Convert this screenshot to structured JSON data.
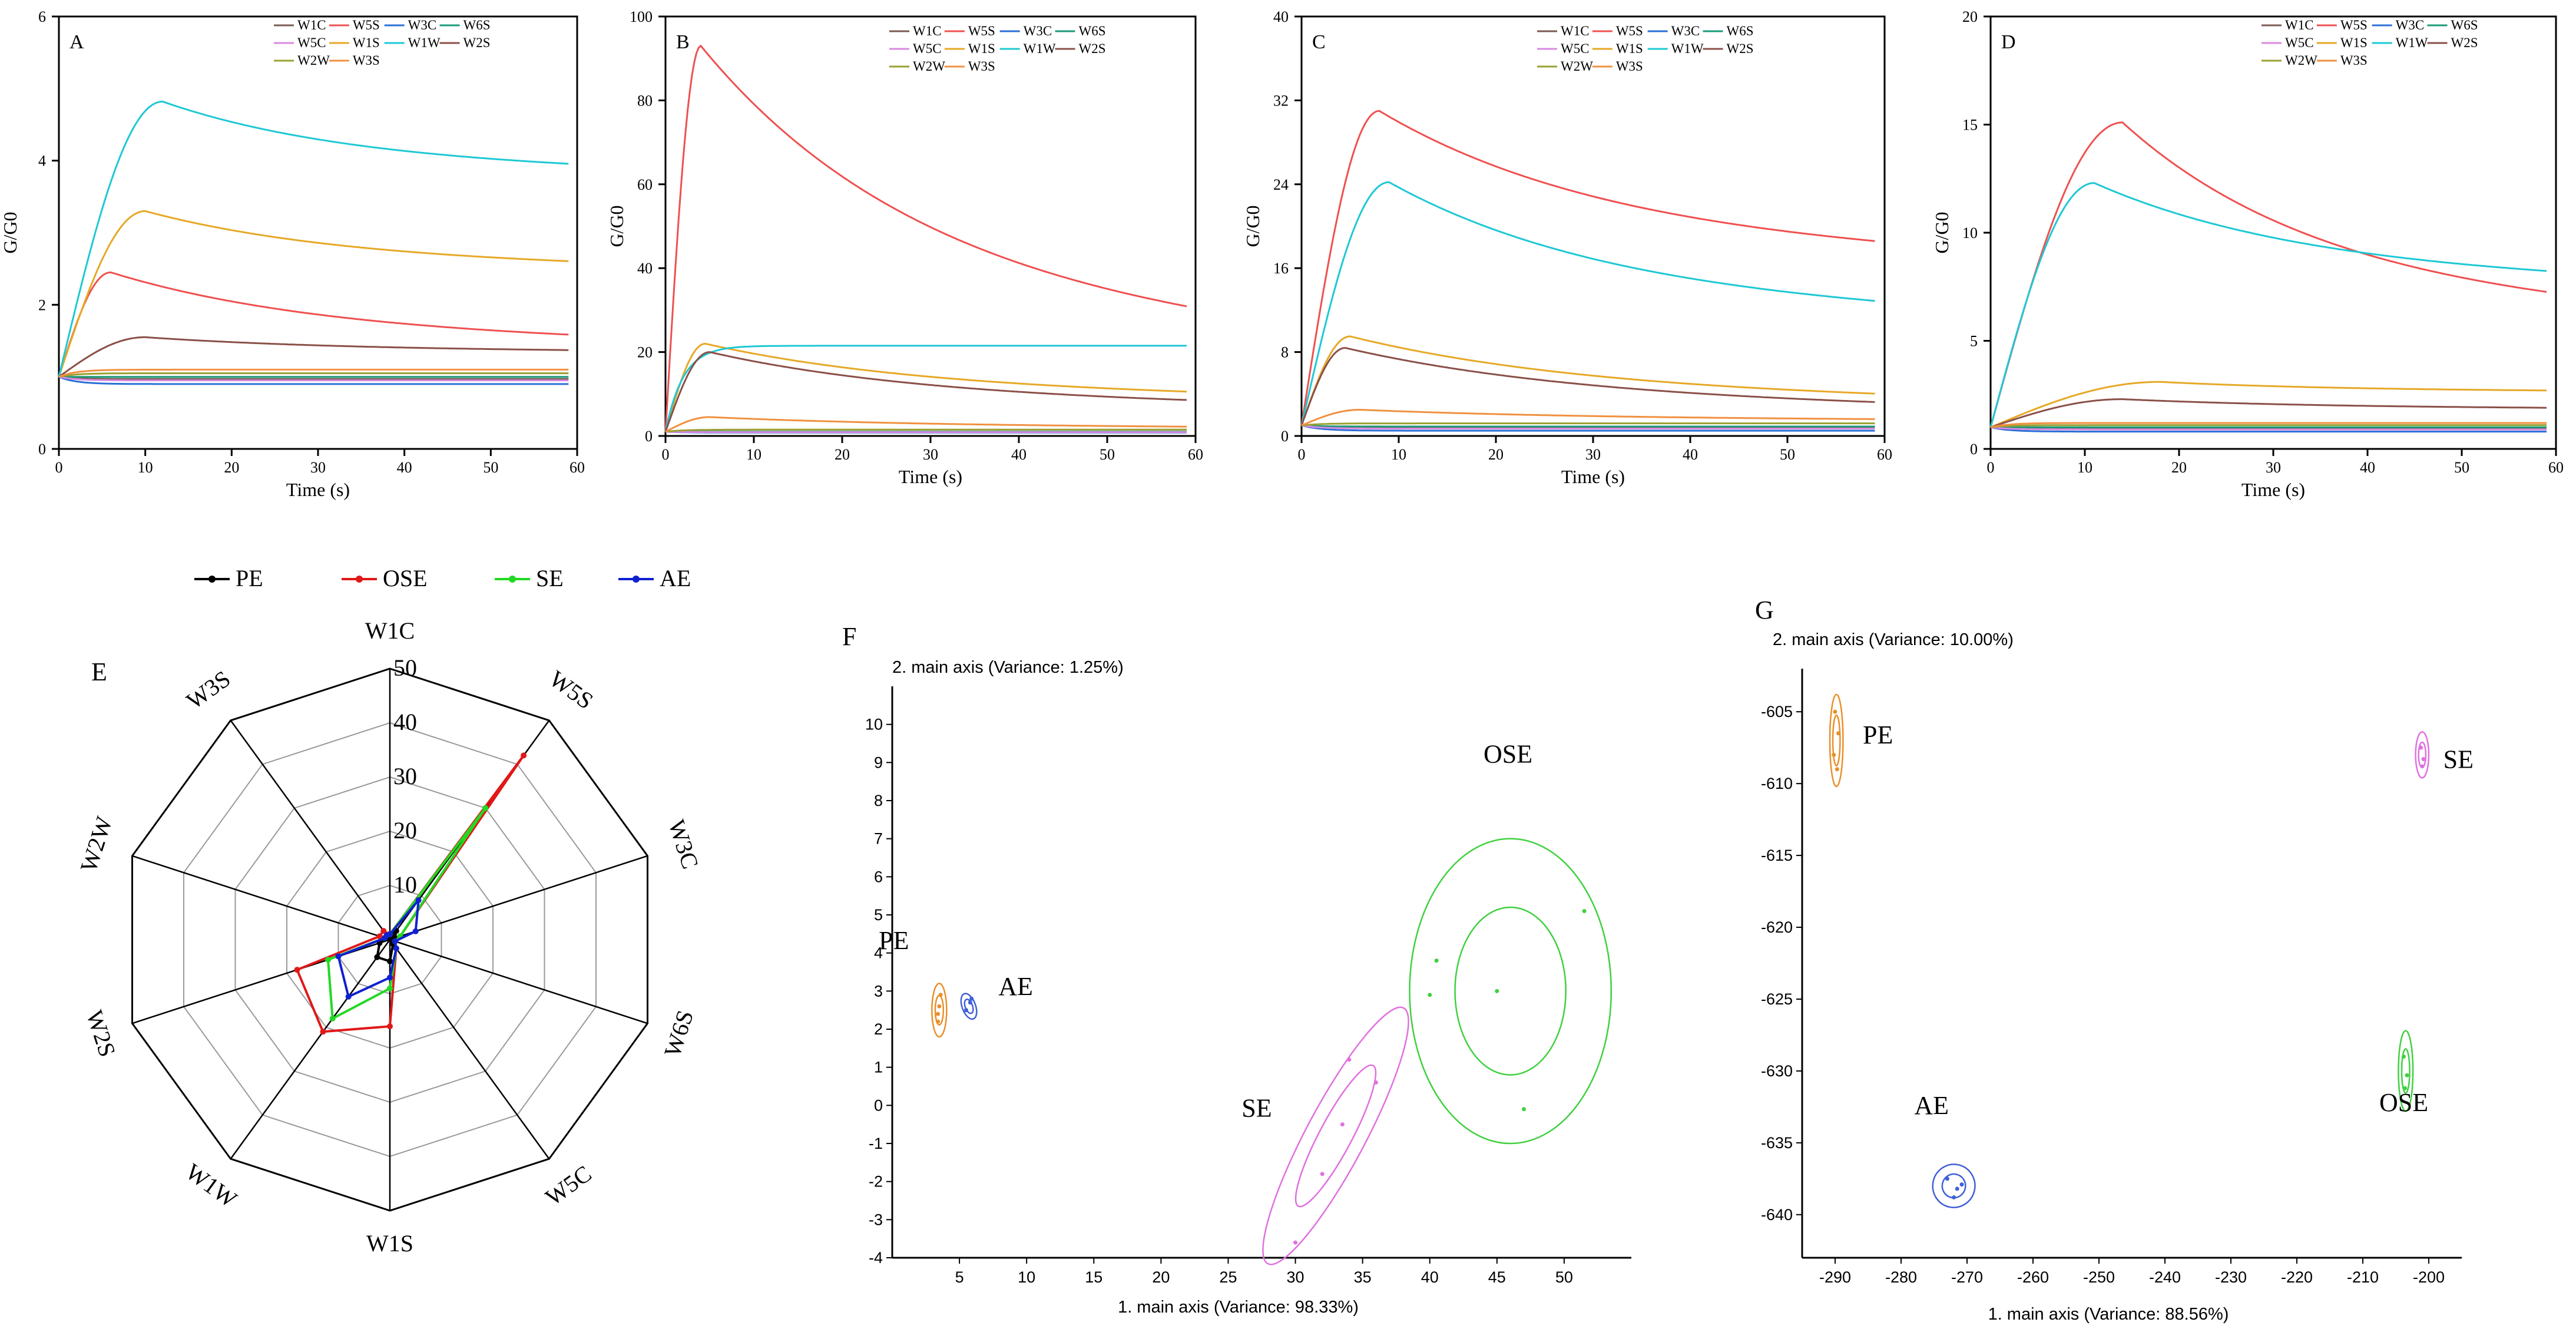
{
  "sensors": [
    "W1C",
    "W5S",
    "W3C",
    "W6S",
    "W5C",
    "W1S",
    "W1W",
    "W2S",
    "W2W",
    "W3S"
  ],
  "sensor_colors": [
    "#7a5a52",
    "#ef5050",
    "#2a6fd6",
    "#1a9a78",
    "#d98ae0",
    "#e6a826",
    "#1ec8d4",
    "#8a5048",
    "#9aa030",
    "#f09040"
  ],
  "chart_data": [
    {
      "type": "line",
      "panel": "A",
      "title": "A",
      "xlabel": "Time (s)",
      "ylabel": "G/G0",
      "xlim": [
        0,
        60
      ],
      "ylim": [
        0,
        6
      ],
      "xticks": [
        0,
        10,
        20,
        30,
        40,
        50,
        60
      ],
      "yticks": [
        0,
        2,
        4,
        6
      ],
      "series": [
        {
          "name": "W1C",
          "kind": "flat",
          "final": 0.97
        },
        {
          "name": "W5S",
          "kind": "peak",
          "peak": 2.45,
          "tpeak": 6,
          "final": 1.58
        },
        {
          "name": "W3C",
          "kind": "flat",
          "final": 0.9
        },
        {
          "name": "W6S",
          "kind": "flat",
          "final": 1.0
        },
        {
          "name": "W5C",
          "kind": "flat",
          "final": 0.95
        },
        {
          "name": "W1S",
          "kind": "peak",
          "peak": 3.3,
          "tpeak": 10,
          "final": 2.6
        },
        {
          "name": "W1W",
          "kind": "peak",
          "peak": 4.82,
          "tpeak": 12,
          "final": 3.95
        },
        {
          "name": "W2S",
          "kind": "peak",
          "peak": 1.55,
          "tpeak": 10,
          "final": 1.37
        },
        {
          "name": "W2W",
          "kind": "flat",
          "final": 1.05
        },
        {
          "name": "W3S",
          "kind": "flat",
          "final": 1.1
        }
      ]
    },
    {
      "type": "line",
      "panel": "B",
      "title": "B",
      "xlabel": "Time (s)",
      "ylabel": "G/G0",
      "xlim": [
        0,
        60
      ],
      "ylim": [
        0,
        100
      ],
      "xticks": [
        0,
        10,
        20,
        30,
        40,
        50,
        60
      ],
      "yticks": [
        0,
        20,
        40,
        60,
        80,
        100
      ],
      "series": [
        {
          "name": "W1C",
          "kind": "flat",
          "final": 1
        },
        {
          "name": "W5S",
          "kind": "peak",
          "peak": 93,
          "tpeak": 4,
          "final": 30.5
        },
        {
          "name": "W3C",
          "kind": "flat",
          "final": 0.8
        },
        {
          "name": "W6S",
          "kind": "flat",
          "final": 1
        },
        {
          "name": "W5C",
          "kind": "flat",
          "final": 0.9
        },
        {
          "name": "W1S",
          "kind": "peak",
          "peak": 22,
          "tpeak": 4.5,
          "final": 10.5
        },
        {
          "name": "W1W",
          "kind": "rise",
          "final": 21.5,
          "tpeak": 6
        },
        {
          "name": "W2S",
          "kind": "peak",
          "peak": 20,
          "tpeak": 5,
          "final": 8.5
        },
        {
          "name": "W2W",
          "kind": "flat",
          "final": 1.5
        },
        {
          "name": "W3S",
          "kind": "peak",
          "peak": 4.5,
          "tpeak": 5,
          "final": 2.2
        }
      ]
    },
    {
      "type": "line",
      "panel": "C",
      "title": "C",
      "xlabel": "Time (s)",
      "ylabel": "G/G0",
      "xlim": [
        0,
        60
      ],
      "ylim": [
        0,
        40
      ],
      "xticks": [
        0,
        10,
        20,
        30,
        40,
        50,
        60
      ],
      "yticks": [
        0,
        8,
        16,
        24,
        32,
        40
      ],
      "series": [
        {
          "name": "W1C",
          "kind": "flat",
          "final": 0.8
        },
        {
          "name": "W5S",
          "kind": "peak",
          "peak": 31,
          "tpeak": 8,
          "final": 18.5
        },
        {
          "name": "W3C",
          "kind": "flat",
          "final": 0.5
        },
        {
          "name": "W6S",
          "kind": "flat",
          "final": 0.9
        },
        {
          "name": "W5C",
          "kind": "flat",
          "final": 0.7
        },
        {
          "name": "W1S",
          "kind": "peak",
          "peak": 9.5,
          "tpeak": 5,
          "final": 4
        },
        {
          "name": "W1W",
          "kind": "peak",
          "peak": 24.2,
          "tpeak": 9,
          "final": 12.8
        },
        {
          "name": "W2S",
          "kind": "peak",
          "peak": 8.4,
          "tpeak": 4.5,
          "final": 3.2
        },
        {
          "name": "W2W",
          "kind": "flat",
          "final": 1.2
        },
        {
          "name": "W3S",
          "kind": "peak",
          "peak": 2.5,
          "tpeak": 6,
          "final": 1.6
        }
      ]
    },
    {
      "type": "line",
      "panel": "D",
      "title": "D",
      "xlabel": "Time (s)",
      "ylabel": "G/G0",
      "xlim": [
        0,
        60
      ],
      "ylim": [
        0,
        20
      ],
      "xticks": [
        0,
        10,
        20,
        30,
        40,
        50,
        60
      ],
      "yticks": [
        0,
        5,
        10,
        15,
        20
      ],
      "series": [
        {
          "name": "W1C",
          "kind": "flat",
          "final": 0.95
        },
        {
          "name": "W5S",
          "kind": "peak",
          "peak": 15.1,
          "tpeak": 14,
          "final": 7.2
        },
        {
          "name": "W3C",
          "kind": "flat",
          "final": 0.8
        },
        {
          "name": "W6S",
          "kind": "flat",
          "final": 1
        },
        {
          "name": "W5C",
          "kind": "flat",
          "final": 0.9
        },
        {
          "name": "W1S",
          "kind": "peak",
          "peak": 3.1,
          "tpeak": 18,
          "final": 2.7
        },
        {
          "name": "W1W",
          "kind": "peak",
          "peak": 12.3,
          "tpeak": 11,
          "final": 8.2
        },
        {
          "name": "W2S",
          "kind": "peak",
          "peak": 2.3,
          "tpeak": 14,
          "final": 1.9
        },
        {
          "name": "W2W",
          "kind": "flat",
          "final": 1.1
        },
        {
          "name": "W3S",
          "kind": "flat",
          "final": 1.2
        }
      ]
    },
    {
      "type": "radar",
      "panel": "E",
      "title": "E",
      "axes": [
        "W1C",
        "W5S",
        "W3C",
        "W6S",
        "W5C",
        "W1S",
        "W1W",
        "W2S",
        "W2W",
        "W3S"
      ],
      "rlim": [
        0,
        50
      ],
      "rticks": [
        0,
        10,
        20,
        30,
        40,
        50
      ],
      "series": [
        {
          "name": "PE",
          "color": "#000000",
          "values": [
            1,
            2,
            1,
            1,
            1,
            4,
            4,
            2,
            1,
            1
          ]
        },
        {
          "name": "OSE",
          "color": "#e01818",
          "values": [
            1,
            42,
            2,
            1,
            2,
            16,
            21,
            18,
            2,
            2
          ]
        },
        {
          "name": "SE",
          "color": "#22d822",
          "values": [
            1,
            30,
            2,
            1,
            2,
            9,
            18,
            12,
            1,
            1
          ]
        },
        {
          "name": "AE",
          "color": "#1020d0",
          "values": [
            1,
            9,
            5,
            1,
            2,
            7,
            13,
            10,
            1,
            1
          ]
        }
      ]
    },
    {
      "type": "scatter",
      "panel": "F",
      "title": "F",
      "xlabel": "1. main axis (Variance: 98.33%)",
      "ylabel": "2. main axis (Variance: 1.25%)",
      "xlim": [
        0,
        55
      ],
      "ylim": [
        -4,
        11
      ],
      "xticks": [
        5,
        10,
        15,
        20,
        25,
        30,
        35,
        40,
        45,
        50
      ],
      "yticks": [
        -4,
        -3,
        -2,
        -1,
        0,
        1,
        2,
        3,
        4,
        5,
        6,
        7,
        8,
        9,
        10
      ],
      "groups": [
        {
          "name": "PE",
          "color": "#e8902a",
          "center": [
            3.5,
            2.5
          ],
          "points": [
            [
              3.4,
              2.2
            ],
            [
              3.5,
              2.6
            ],
            [
              3.6,
              2.9
            ],
            [
              3.4,
              2.4
            ]
          ]
        },
        {
          "name": "AE",
          "color": "#4060d8",
          "center": [
            5.7,
            2.6
          ],
          "points": [
            [
              5.5,
              2.5
            ],
            [
              5.8,
              2.7
            ],
            [
              5.9,
              2.8
            ]
          ]
        },
        {
          "name": "SE",
          "color": "#e070e0",
          "center": [
            33,
            -0.8
          ],
          "points": [
            [
              30,
              -3.6
            ],
            [
              32,
              -1.8
            ],
            [
              33.5,
              -0.5
            ],
            [
              36,
              0.6
            ],
            [
              34,
              1.2
            ]
          ]
        },
        {
          "name": "OSE",
          "color": "#40d040",
          "center": [
            46,
            3
          ],
          "points": [
            [
              40.5,
              3.8
            ],
            [
              40,
              2.9
            ],
            [
              45,
              3
            ],
            [
              47,
              -0.1
            ],
            [
              51.5,
              5.1
            ]
          ]
        }
      ]
    },
    {
      "type": "scatter",
      "panel": "G",
      "title": "G",
      "xlabel": "1. main axis (Variance: 88.56%)",
      "ylabel": "2. main axis (Variance: 10.00%)",
      "xlim": [
        -295,
        -195
      ],
      "ylim": [
        -643,
        -602
      ],
      "xticks": [
        -290,
        -280,
        -270,
        -260,
        -250,
        -240,
        -230,
        -220,
        -210,
        -200
      ],
      "yticks": [
        -640,
        -635,
        -630,
        -625,
        -620,
        -615,
        -610,
        -605
      ],
      "groups": [
        {
          "name": "PE",
          "color": "#e8902a",
          "center": [
            -289.8,
            -607
          ],
          "points": [
            [
              -290,
              -605
            ],
            [
              -289.5,
              -606.5
            ],
            [
              -290.2,
              -608
            ],
            [
              -289.7,
              -609
            ]
          ]
        },
        {
          "name": "SE",
          "color": "#e070e0",
          "center": [
            -201,
            -608
          ],
          "points": [
            [
              -201.2,
              -607.5
            ],
            [
              -200.8,
              -608.3
            ],
            [
              -201,
              -608.8
            ]
          ]
        },
        {
          "name": "OSE",
          "color": "#40d040",
          "center": [
            -203.5,
            -630
          ],
          "points": [
            [
              -203.8,
              -629
            ],
            [
              -203.3,
              -630.3
            ],
            [
              -203.6,
              -631.2
            ]
          ]
        },
        {
          "name": "AE",
          "color": "#4060d8",
          "center": [
            -272,
            -638
          ],
          "points": [
            [
              -273,
              -637.5
            ],
            [
              -271.5,
              -638.2
            ],
            [
              -272,
              -638.8
            ],
            [
              -270.8,
              -637.9
            ]
          ]
        }
      ]
    }
  ]
}
